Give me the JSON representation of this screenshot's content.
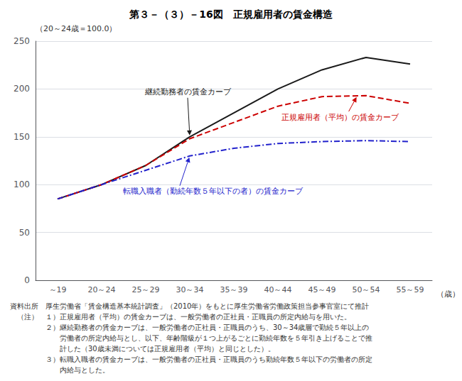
{
  "chart_data": {
    "type": "line",
    "title": "第３－（３）－16図　正規雇用者の賃金構造",
    "y_label": "（20～24歳＝100.0）",
    "x_label": "（歳）",
    "categories": [
      "～19",
      "20～24",
      "25～29",
      "30～34",
      "35～39",
      "40～44",
      "45～49",
      "50～54",
      "55～59"
    ],
    "series": [
      {
        "name": "継続勤務者の賃金カーブ",
        "color": "#1a1a1a",
        "line_style": "solid",
        "values": [
          85,
          100,
          120,
          150,
          175,
          200,
          220,
          233,
          226
        ]
      },
      {
        "name": "正規雇用者（平均）の賃金カーブ",
        "color": "#cc0000",
        "line_style": "dashed",
        "values": [
          85,
          100,
          120,
          148,
          165,
          182,
          192,
          193,
          185
        ]
      },
      {
        "name": "転職入職者（勤続年数５年以下の者）の賃金カーブ",
        "color": "#2222cc",
        "line_style": "dashdot",
        "values": [
          85,
          100,
          115,
          130,
          138,
          143,
          145,
          146,
          145
        ]
      }
    ],
    "ylim": [
      0,
      250
    ],
    "yticks": [
      0,
      50,
      100,
      150,
      200,
      250
    ],
    "grid": true,
    "notes": [
      "資料出所　厚生労働省「賃金構造基本統計調査」（2010年）をもとに厚生労働省労働政策担当参事官室にて推計",
      "　（注）　１）正規雇用者（平均）の賃金カーブは、一般労働者の正社員・正職員の所定内給与を用いた。",
      "　　　　　２）継続勤務者の賃金カーブは、一般労働者の正社員・正職員のうち、30～34歳層で勤続５年以上の",
      "　　　　　　　労働者の所定内給与とし、以下、年齢階級が１つ上がるごとに勤続年数を５年引き上げることで推",
      "　　　　　　　計した（30歳未満については正規雇用者（平均）と同じとした）。",
      "　　　　　３）転職入職者の賃金カーブは、一般労働者の正社員・正職員のうち勤続年数５年以下の労働者の所定",
      "　　　　　　　内給与とした。"
    ]
  }
}
